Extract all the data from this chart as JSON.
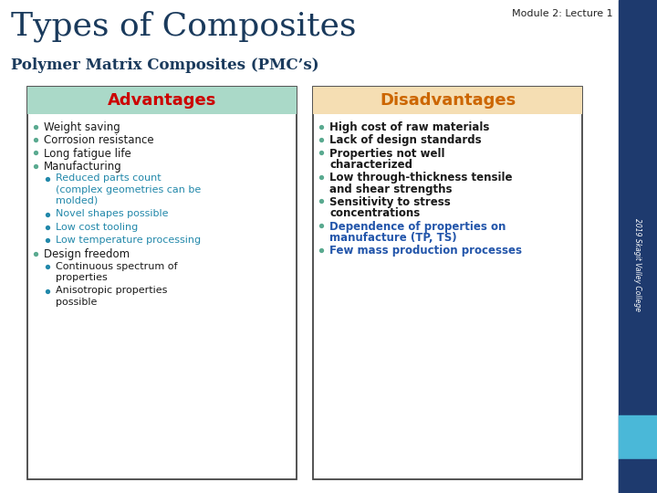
{
  "title": "Types of Composites",
  "module_label": "Module 2: Lecture 1",
  "subtitle": "Polymer Matrix Composites (PMC’s)",
  "adv_header": "Advantages",
  "dis_header": "Disadvantages",
  "adv_header_bg": "#aad9c8",
  "dis_header_bg": "#f5deb3",
  "adv_header_color": "#cc0000",
  "dis_header_color": "#cc6600",
  "title_color": "#1a3a5c",
  "subtitle_color": "#1a3a5c",
  "module_color": "#222222",
  "sidebar_dark": "#1e3a6e",
  "sidebar_teal": "#4ab8d8",
  "sidebar_text": "2019 Skagit Valley College",
  "bg_color": "#ffffff",
  "box_border_color": "#444444",
  "advantages": [
    {
      "level": 1,
      "text": "Weight saving",
      "color": "#1a1a1a",
      "bold": false
    },
    {
      "level": 1,
      "text": "Corrosion resistance",
      "color": "#1a1a1a",
      "bold": false
    },
    {
      "level": 1,
      "text": "Long fatigue life",
      "color": "#1a1a1a",
      "bold": false
    },
    {
      "level": 1,
      "text": "Manufacturing",
      "color": "#1a1a1a",
      "bold": false
    },
    {
      "level": 2,
      "text": "Reduced parts count\n(complex geometries can be\nmolded)",
      "color": "#2288aa",
      "bold": false
    },
    {
      "level": 2,
      "text": "Novel shapes possible",
      "color": "#2288aa",
      "bold": false
    },
    {
      "level": 2,
      "text": "Low cost tooling",
      "color": "#2288aa",
      "bold": false
    },
    {
      "level": 2,
      "text": "Low temperature processing",
      "color": "#2288aa",
      "bold": false
    },
    {
      "level": 1,
      "text": "Design freedom",
      "color": "#1a1a1a",
      "bold": false
    },
    {
      "level": 2,
      "text": "Continuous spectrum of\nproperties",
      "color": "#1a1a1a",
      "bold": false
    },
    {
      "level": 2,
      "text": "Anisotropic properties\npossible",
      "color": "#1a1a1a",
      "bold": false
    }
  ],
  "disadvantages": [
    {
      "level": 1,
      "text": "High cost of raw materials",
      "color": "#1a1a1a",
      "bold": true
    },
    {
      "level": 1,
      "text": "Lack of design standards",
      "color": "#1a1a1a",
      "bold": true
    },
    {
      "level": 1,
      "text": "Properties not well\ncharacterized",
      "color": "#1a1a1a",
      "bold": true
    },
    {
      "level": 1,
      "text": "Low through-thickness tensile\nand shear strengths",
      "color": "#1a1a1a",
      "bold": true
    },
    {
      "level": 1,
      "text": "Sensitivity to stress\nconcentrations",
      "color": "#1a1a1a",
      "bold": true
    },
    {
      "level": 1,
      "text": "Dependence of properties on\nmanufacture (TP, TS)",
      "color": "#2255aa",
      "bold": true
    },
    {
      "level": 1,
      "text": "Few mass production processes",
      "color": "#2255aa",
      "bold": true
    }
  ]
}
